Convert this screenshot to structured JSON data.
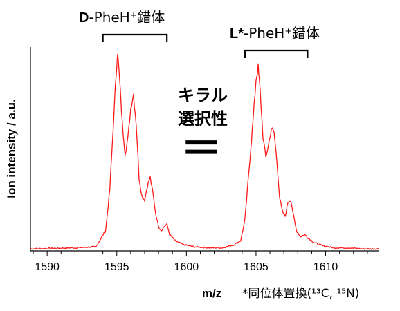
{
  "chart_data": {
    "type": "line",
    "xlabel": "m/z",
    "ylabel": "Ion intensity / a.u.",
    "xlim": [
      1588.8,
      1613.8
    ],
    "ylim": [
      0,
      1.0
    ],
    "x_ticks": [
      1590,
      1595,
      1600,
      1605,
      1610
    ],
    "grid": false,
    "line_color": "#ff1a1a",
    "series": [
      {
        "x": [
          1588.8,
          1592.0,
          1593.5,
          1594.2,
          1594.5,
          1594.7,
          1594.9,
          1595.05,
          1595.2,
          1595.4,
          1595.6,
          1595.8,
          1596.0,
          1596.2,
          1596.4,
          1596.6,
          1596.8,
          1597.0,
          1597.2,
          1597.4,
          1597.6,
          1597.8,
          1598.0,
          1598.2,
          1598.4,
          1598.6,
          1598.8,
          1599.2,
          1599.8,
          1600.6,
          1601.6,
          1602.6,
          1603.4,
          1603.9,
          1604.2,
          1604.5,
          1604.8,
          1605.0,
          1605.15,
          1605.3,
          1605.5,
          1605.7,
          1605.9,
          1606.1,
          1606.3,
          1606.5,
          1606.7,
          1606.9,
          1607.1,
          1607.3,
          1607.5,
          1607.7,
          1607.9,
          1608.2,
          1608.5,
          1608.8,
          1609.2,
          1609.8,
          1610.6,
          1611.6,
          1612.6,
          1613.8
        ],
        "y": [
          0.01,
          0.015,
          0.02,
          0.1,
          0.3,
          0.55,
          0.8,
          0.98,
          0.84,
          0.62,
          0.48,
          0.55,
          0.7,
          0.77,
          0.62,
          0.36,
          0.27,
          0.25,
          0.32,
          0.36,
          0.28,
          0.18,
          0.12,
          0.1,
          0.12,
          0.13,
          0.08,
          0.05,
          0.03,
          0.02,
          0.015,
          0.015,
          0.03,
          0.05,
          0.15,
          0.4,
          0.65,
          0.84,
          0.9,
          0.78,
          0.56,
          0.46,
          0.52,
          0.6,
          0.58,
          0.44,
          0.26,
          0.19,
          0.17,
          0.24,
          0.25,
          0.17,
          0.1,
          0.07,
          0.08,
          0.06,
          0.04,
          0.025,
          0.015,
          0.015,
          0.01,
          0.01
        ]
      }
    ],
    "annotations": {
      "group_left": {
        "bold": "D",
        "text": "-PheH⁺錯体",
        "bracket_x": [
          1594.0,
          1598.6
        ]
      },
      "group_right": {
        "bold": "L*",
        "text": "-PheH⁺錯体",
        "bracket_x": [
          1604.2,
          1608.7
        ]
      },
      "center_line1": "キラル",
      "center_line2": "選択性",
      "center_symbol": "＝",
      "footnote": "*同位体置換(¹³C, ¹⁵N)"
    }
  }
}
